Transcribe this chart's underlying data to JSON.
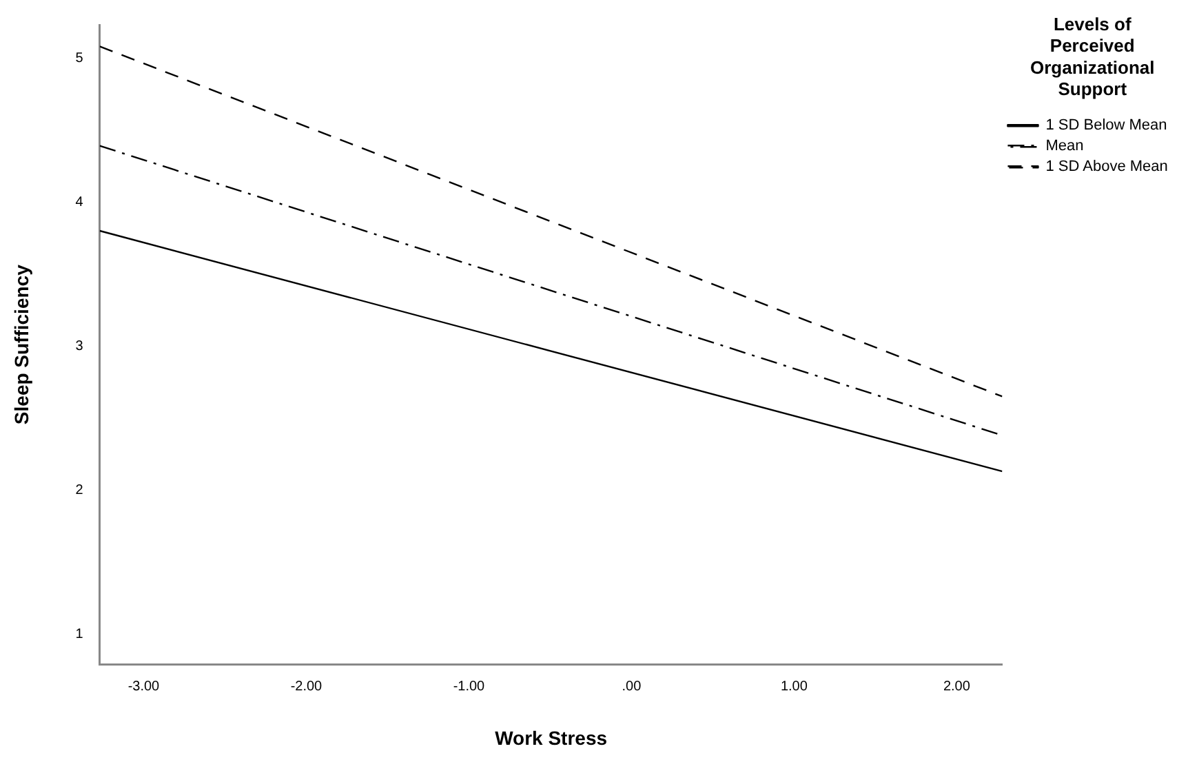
{
  "chart_data": {
    "type": "line",
    "xlabel": "Work Stress",
    "ylabel": "Sleep Sufficiency",
    "legend_title": "Levels of Perceived Organizational Support",
    "legend": "right",
    "x": [
      -3.27,
      2.28
    ],
    "series": [
      {
        "name": "1 SD Below Mean",
        "color": "#000000",
        "line_style": "solid",
        "values": [
          3.8,
          2.13
        ]
      },
      {
        "name": "Mean",
        "color": "#000000",
        "line_style": "dashdot",
        "values": [
          4.39,
          2.38
        ]
      },
      {
        "name": "1 SD Above Mean",
        "color": "#000000",
        "line_style": "dashed",
        "values": [
          5.08,
          2.65
        ]
      }
    ],
    "xlim": [
      -3.27,
      2.28
    ],
    "xticks": [
      {
        "value": -3,
        "label": "-3.00"
      },
      {
        "value": -2,
        "label": "-2.00"
      },
      {
        "value": -1,
        "label": "-1.00"
      },
      {
        "value": 0,
        "label": ".00"
      },
      {
        "value": 1,
        "label": "1.00"
      },
      {
        "value": 2,
        "label": "2.00"
      }
    ],
    "ylim": [
      0.79,
      5.23
    ],
    "yticks": [
      1,
      2,
      3,
      4,
      5
    ],
    "grid": false,
    "marker": "none"
  }
}
